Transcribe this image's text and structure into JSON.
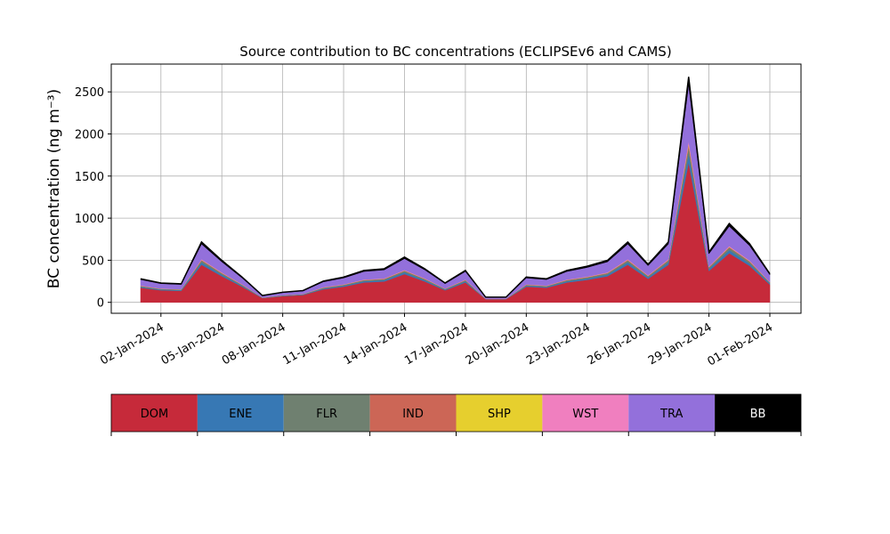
{
  "chart_data": {
    "type": "stacked_area",
    "title": "Source contribution to BC concentrations (ECLIPSEv6 and CAMS)",
    "y_label": "BC concentration (ng m⁻³)",
    "x": [
      "01-Jan-2024",
      "02-Jan-2024",
      "03-Jan-2024",
      "04-Jan-2024",
      "05-Jan-2024",
      "06-Jan-2024",
      "07-Jan-2024",
      "08-Jan-2024",
      "09-Jan-2024",
      "10-Jan-2024",
      "11-Jan-2024",
      "12-Jan-2024",
      "13-Jan-2024",
      "14-Jan-2024",
      "15-Jan-2024",
      "16-Jan-2024",
      "17-Jan-2024",
      "18-Jan-2024",
      "19-Jan-2024",
      "20-Jan-2024",
      "21-Jan-2024",
      "22-Jan-2024",
      "23-Jan-2024",
      "24-Jan-2024",
      "25-Jan-2024",
      "26-Jan-2024",
      "27-Jan-2024",
      "28-Jan-2024",
      "29-Jan-2024",
      "30-Jan-2024",
      "31-Jan-2024",
      "01-Feb-2024"
    ],
    "xticks": [
      "02-Jan-2024",
      "05-Jan-2024",
      "08-Jan-2024",
      "11-Jan-2024",
      "14-Jan-2024",
      "17-Jan-2024",
      "20-Jan-2024",
      "23-Jan-2024",
      "26-Jan-2024",
      "29-Jan-2024",
      "01-Feb-2024"
    ],
    "ylim": [
      -130,
      2830
    ],
    "yticks": [
      0,
      500,
      1000,
      1500,
      2000,
      2500
    ],
    "grid": true,
    "series": [
      {
        "name": "DOM",
        "color": "#c62a3a",
        "values": [
          174,
          143,
          136,
          446,
          310,
          186,
          50,
          74,
          87,
          155,
          186,
          236,
          248,
          335,
          248,
          143,
          236,
          37,
          37,
          186,
          174,
          236,
          267,
          310,
          446,
          279,
          446,
          1660,
          372,
          583,
          434,
          211
        ]
      },
      {
        "name": "ENE",
        "color": "#3778b4",
        "values": [
          11,
          9,
          9,
          29,
          20,
          12,
          3,
          5,
          6,
          10,
          12,
          15,
          16,
          22,
          16,
          9,
          15,
          2,
          2,
          12,
          11,
          15,
          17,
          20,
          29,
          18,
          29,
          107,
          24,
          38,
          28,
          14
        ]
      },
      {
        "name": "FLR",
        "color": "#6f8070",
        "values": [
          8,
          7,
          7,
          22,
          15,
          9,
          2,
          4,
          4,
          8,
          9,
          11,
          12,
          16,
          12,
          7,
          11,
          2,
          2,
          9,
          8,
          11,
          13,
          15,
          22,
          14,
          22,
          80,
          18,
          28,
          21,
          10
        ]
      },
      {
        "name": "IND",
        "color": "#cc6656",
        "values": [
          3,
          2,
          2,
          7,
          5,
          3,
          1,
          1,
          1,
          3,
          3,
          4,
          4,
          5,
          4,
          2,
          4,
          1,
          1,
          3,
          3,
          4,
          4,
          5,
          7,
          5,
          7,
          27,
          6,
          9,
          7,
          3
        ]
      },
      {
        "name": "SHP",
        "color": "#e6cf2e",
        "values": [
          1,
          1,
          1,
          1,
          1,
          1,
          1,
          1,
          1,
          1,
          1,
          1,
          1,
          1,
          1,
          1,
          1,
          1,
          1,
          1,
          1,
          1,
          1,
          1,
          1,
          1,
          1,
          13,
          1,
          1,
          1,
          1
        ]
      },
      {
        "name": "WST",
        "color": "#f07fbf",
        "values": [
          3,
          2,
          2,
          7,
          5,
          3,
          1,
          1,
          1,
          3,
          3,
          4,
          4,
          5,
          4,
          2,
          4,
          1,
          1,
          3,
          3,
          4,
          4,
          5,
          7,
          5,
          7,
          27,
          6,
          9,
          7,
          3
        ]
      },
      {
        "name": "TRA",
        "color": "#9370db",
        "values": [
          70,
          58,
          55,
          180,
          125,
          75,
          20,
          30,
          35,
          63,
          75,
          95,
          100,
          135,
          100,
          58,
          95,
          15,
          15,
          75,
          70,
          95,
          108,
          125,
          180,
          113,
          180,
          670,
          150,
          235,
          175,
          85
        ]
      },
      {
        "name": "BB",
        "color": "#000000",
        "values": [
          10,
          8,
          8,
          25,
          18,
          11,
          3,
          4,
          5,
          9,
          11,
          13,
          14,
          19,
          14,
          8,
          13,
          2,
          2,
          11,
          10,
          13,
          15,
          18,
          25,
          16,
          25,
          94,
          21,
          33,
          25,
          12
        ]
      }
    ]
  }
}
